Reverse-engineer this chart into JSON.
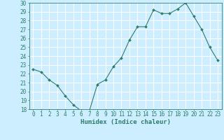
{
  "x": [
    0,
    1,
    2,
    3,
    4,
    5,
    6,
    7,
    8,
    9,
    10,
    11,
    12,
    13,
    14,
    15,
    16,
    17,
    18,
    19,
    20,
    21,
    22,
    23
  ],
  "y": [
    22.5,
    22.2,
    21.3,
    20.7,
    19.5,
    18.5,
    17.8,
    17.8,
    20.8,
    21.3,
    22.8,
    23.8,
    25.8,
    27.3,
    27.3,
    29.2,
    28.8,
    28.8,
    29.3,
    30.0,
    28.5,
    27.0,
    25.0,
    23.5
  ],
  "line_color": "#2d7d6b",
  "marker": "D",
  "marker_size": 2.0,
  "bg_color": "#cceeff",
  "grid_color": "#ffffff",
  "xlabel": "Humidex (Indice chaleur)",
  "ylim": [
    18,
    30
  ],
  "xlim": [
    -0.5,
    23.5
  ],
  "yticks": [
    18,
    19,
    20,
    21,
    22,
    23,
    24,
    25,
    26,
    27,
    28,
    29,
    30
  ],
  "xticks": [
    0,
    1,
    2,
    3,
    4,
    5,
    6,
    7,
    8,
    9,
    10,
    11,
    12,
    13,
    14,
    15,
    16,
    17,
    18,
    19,
    20,
    21,
    22,
    23
  ],
  "tick_color": "#2d7d6b",
  "label_fontsize": 6.5,
  "tick_fontsize": 5.5
}
